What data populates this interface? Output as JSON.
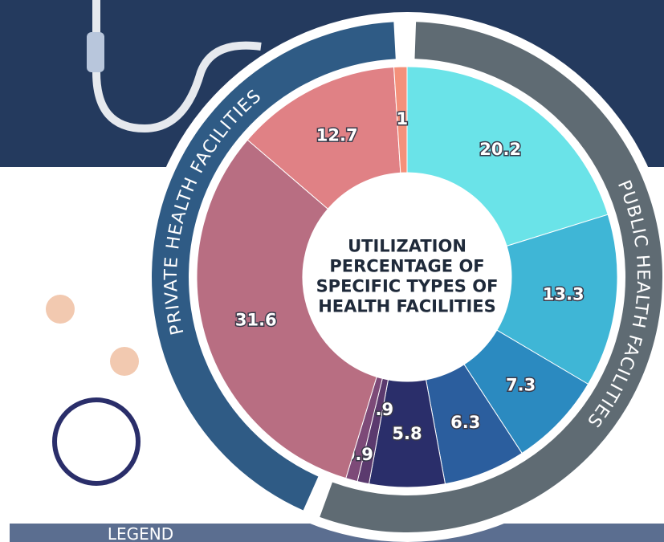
{
  "chart_data": {
    "type": "pie",
    "title": "UTILIZATION PERCENTAGE OF SPECIFIC TYPES OF HEALTH FACILITIES",
    "groups": [
      "PUBLIC HEALTH FACILITIES",
      "PRIVATE HEALTH FACILITIES"
    ],
    "legend_title": "LEGEND",
    "values": [
      20.2,
      13.3,
      7.3,
      6.3,
      5.8,
      0.9,
      0.9,
      31.6,
      12.7,
      1.0
    ],
    "colors": [
      "#6ae3e8",
      "#3fb6d6",
      "#2b8ac0",
      "#2b5e9e",
      "#2a2e6a",
      "#5b3a6e",
      "#7d4a78",
      "#b86e82",
      "#e08185",
      "#f4907a"
    ]
  }
}
